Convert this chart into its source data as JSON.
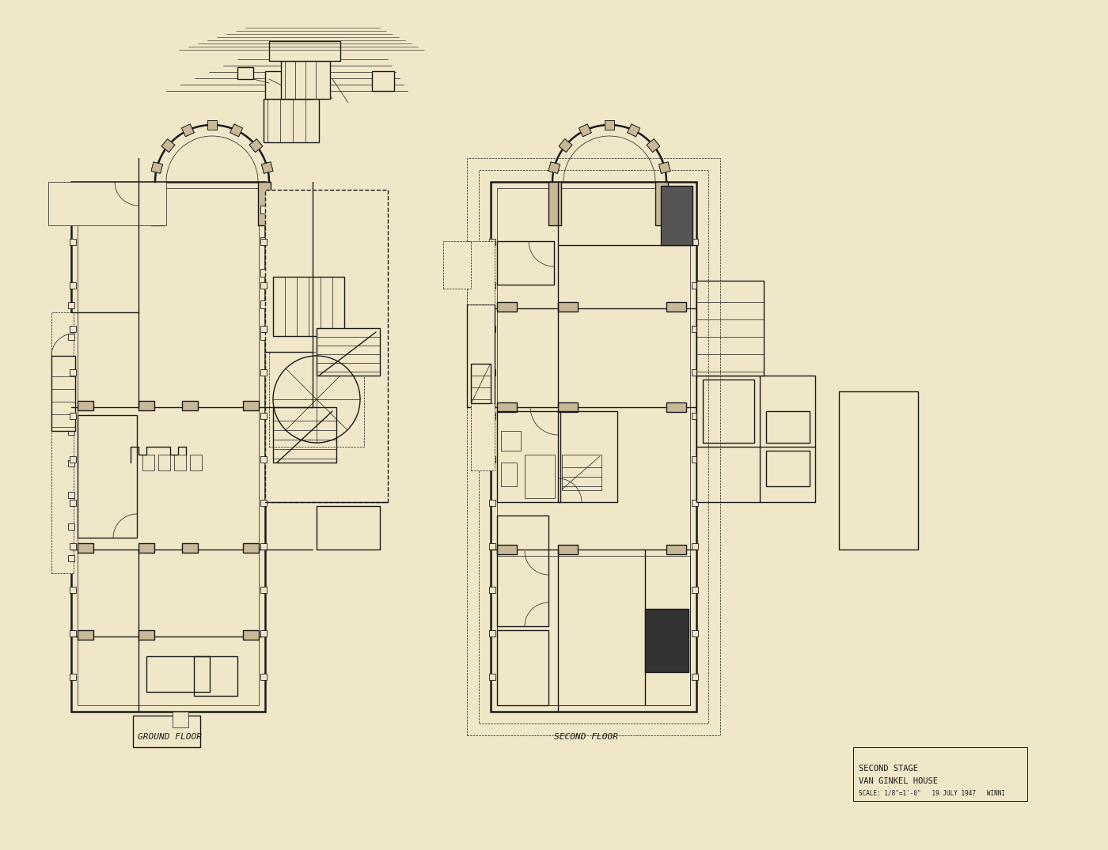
{
  "bg_color": "#f0e6c8",
  "line_color": "#1a1a1a",
  "wall_color": "#2a2520",
  "lw_thick": 1.8,
  "lw_med": 1.0,
  "lw_thin": 0.5,
  "lw_dash": 0.5,
  "title1": "SECOND STAGE",
  "title2": "VAN GINKEL HOUSE",
  "subtitle": "SCALE: 1/8\"=1'-0\"   19 JULY 1947   WINNI",
  "label_ground": "GROUND FLOOR",
  "label_second": "SECOND FLOOR"
}
